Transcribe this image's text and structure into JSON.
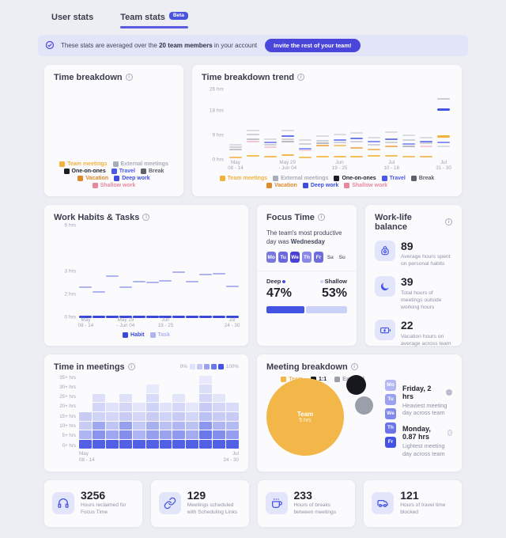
{
  "colors": {
    "accent": "#4353e3",
    "accent_light": "#ccd1f7",
    "amber": "#f2b33e",
    "page_bg": "#edeef4",
    "card_bg": "#fbfbfd"
  },
  "tabs": {
    "user_label": "User stats",
    "team_label": "Team stats",
    "beta": "Beta"
  },
  "banner": {
    "text_prefix": "These stats are averaged over the ",
    "text_bold": "20 team members",
    "text_suffix": " in your account",
    "button": "Invite the rest of your team!"
  },
  "cards": {
    "time_breakdown": {
      "title": "Time breakdown",
      "legend": [
        {
          "label": "Team meetings",
          "color": "#f2b33e"
        },
        {
          "label": "External meetings",
          "color": "#a9adb9"
        },
        {
          "label": "One-on-ones",
          "color": "#1c1d24",
          "text": "#23242d",
          "bold": true
        },
        {
          "label": "Travel",
          "color": "#4a5ae8",
          "bold": true
        },
        {
          "label": "Break",
          "color": "#5c616c"
        },
        {
          "label": "Vacation",
          "color": "#e0892a"
        },
        {
          "label": "Deep work",
          "color": "#3c4be0",
          "bold": true
        },
        {
          "label": "Shallow work",
          "color": "#e8889f"
        }
      ]
    },
    "trend": {
      "title": "Time breakdown trend",
      "y_max": 27.5,
      "y_ticks": [
        {
          "label": "26 hrs",
          "v": 26
        },
        {
          "label": "18 hrs",
          "v": 18
        },
        {
          "label": "9 hrs",
          "v": 9
        },
        {
          "label": "0 hrs",
          "v": 0
        }
      ],
      "x_ticks": [
        {
          "w": 0,
          "t": "May",
          "b": "08 - 14"
        },
        {
          "w": 3,
          "t": "May 29",
          "b": "- Jun 04"
        },
        {
          "w": 6,
          "t": "Jun",
          "b": "19 - 25"
        },
        {
          "w": 9,
          "t": "Jul",
          "b": "10 - 16"
        },
        {
          "w": 12,
          "t": "Jul",
          "b": "31 - 30"
        }
      ],
      "weeks": 13,
      "series_colors": {
        "team": "#f2b33e",
        "ext": "#b9bdcb",
        "one": "#23242d",
        "travel": "#5565ec",
        "brk": "#9ba0ae",
        "vac": "#e8992e",
        "deep": "#4353e3",
        "shallow": "#eb9db1"
      },
      "marks": [
        {
          "w": 0,
          "v": 5.2,
          "c": "ext",
          "o": 0.5
        },
        {
          "w": 0,
          "v": 4.2,
          "c": "brk",
          "o": 0.45
        },
        {
          "w": 0,
          "v": 3.4,
          "c": "one",
          "o": 0.25
        },
        {
          "w": 0,
          "v": 0.4,
          "c": "team",
          "o": 0.8
        },
        {
          "w": 1,
          "v": 10.3,
          "c": "ext",
          "o": 0.5
        },
        {
          "w": 1,
          "v": 8.8,
          "c": "brk",
          "o": 0.45
        },
        {
          "w": 1,
          "v": 7.3,
          "c": "one",
          "o": 0.25
        },
        {
          "w": 1,
          "v": 6.4,
          "c": "shallow",
          "o": 0.55
        },
        {
          "w": 1,
          "v": 1.0,
          "c": "team",
          "o": 0.85
        },
        {
          "w": 2,
          "v": 7.2,
          "c": "ext",
          "o": 0.5
        },
        {
          "w": 2,
          "v": 6.1,
          "c": "travel",
          "o": 0.7
        },
        {
          "w": 2,
          "v": 5.1,
          "c": "brk",
          "o": 0.45
        },
        {
          "w": 2,
          "v": 4.3,
          "c": "shallow",
          "o": 0.5
        },
        {
          "w": 2,
          "v": 0.7,
          "c": "team",
          "o": 0.85
        },
        {
          "w": 3,
          "v": 10.4,
          "c": "ext",
          "o": 0.5
        },
        {
          "w": 3,
          "v": 8.2,
          "c": "deep",
          "o": 0.8
        },
        {
          "w": 3,
          "v": 7.1,
          "c": "brk",
          "o": 0.45
        },
        {
          "w": 3,
          "v": 6.2,
          "c": "one",
          "o": 0.3
        },
        {
          "w": 3,
          "v": 1.2,
          "c": "team",
          "o": 0.9
        },
        {
          "w": 4,
          "v": 6.9,
          "c": "ext",
          "o": 0.5
        },
        {
          "w": 4,
          "v": 5.5,
          "c": "brk",
          "o": 0.45
        },
        {
          "w": 4,
          "v": 3.8,
          "c": "travel",
          "o": 0.65
        },
        {
          "w": 4,
          "v": 3.0,
          "c": "shallow",
          "o": 0.45
        },
        {
          "w": 4,
          "v": 0.4,
          "c": "team",
          "o": 0.8
        },
        {
          "w": 5,
          "v": 8.3,
          "c": "ext",
          "o": 0.5
        },
        {
          "w": 5,
          "v": 6.7,
          "c": "brk",
          "o": 0.45
        },
        {
          "w": 5,
          "v": 5.6,
          "c": "one",
          "o": 0.3
        },
        {
          "w": 5,
          "v": 4.8,
          "c": "vac",
          "o": 0.75
        },
        {
          "w": 5,
          "v": 0.8,
          "c": "team",
          "o": 0.85
        },
        {
          "w": 6,
          "v": 8.9,
          "c": "ext",
          "o": 0.5
        },
        {
          "w": 6,
          "v": 7.0,
          "c": "travel",
          "o": 0.75
        },
        {
          "w": 6,
          "v": 6.0,
          "c": "brk",
          "o": 0.45
        },
        {
          "w": 6,
          "v": 4.9,
          "c": "team",
          "o": 0.7
        },
        {
          "w": 6,
          "v": 0.6,
          "c": "team",
          "o": 0.85
        },
        {
          "w": 7,
          "v": 9.4,
          "c": "ext",
          "o": 0.5
        },
        {
          "w": 7,
          "v": 7.4,
          "c": "deep",
          "o": 0.75
        },
        {
          "w": 7,
          "v": 6.4,
          "c": "brk",
          "o": 0.45
        },
        {
          "w": 7,
          "v": 4.1,
          "c": "vac",
          "o": 0.7
        },
        {
          "w": 7,
          "v": 0.7,
          "c": "team",
          "o": 0.85
        },
        {
          "w": 8,
          "v": 7.7,
          "c": "ext",
          "o": 0.5
        },
        {
          "w": 8,
          "v": 6.2,
          "c": "travel",
          "o": 0.7
        },
        {
          "w": 8,
          "v": 5.1,
          "c": "brk",
          "o": 0.45
        },
        {
          "w": 8,
          "v": 3.3,
          "c": "vac",
          "o": 0.65
        },
        {
          "w": 8,
          "v": 0.9,
          "c": "team",
          "o": 0.85
        },
        {
          "w": 9,
          "v": 9.9,
          "c": "ext",
          "o": 0.5
        },
        {
          "w": 9,
          "v": 7.1,
          "c": "deep",
          "o": 0.75
        },
        {
          "w": 9,
          "v": 6.1,
          "c": "brk",
          "o": 0.45
        },
        {
          "w": 9,
          "v": 4.6,
          "c": "vac",
          "o": 0.7
        },
        {
          "w": 9,
          "v": 1.0,
          "c": "team",
          "o": 0.85
        },
        {
          "w": 10,
          "v": 8.5,
          "c": "ext",
          "o": 0.5
        },
        {
          "w": 10,
          "v": 6.9,
          "c": "brk",
          "o": 0.45
        },
        {
          "w": 10,
          "v": 5.3,
          "c": "travel",
          "o": 0.65
        },
        {
          "w": 10,
          "v": 4.4,
          "c": "one",
          "o": 0.3
        },
        {
          "w": 10,
          "v": 0.6,
          "c": "team",
          "o": 0.8
        },
        {
          "w": 11,
          "v": 7.9,
          "c": "ext",
          "o": 0.5
        },
        {
          "w": 11,
          "v": 6.3,
          "c": "deep",
          "o": 0.7
        },
        {
          "w": 11,
          "v": 5.7,
          "c": "brk",
          "o": 0.45
        },
        {
          "w": 11,
          "v": 4.5,
          "c": "shallow",
          "o": 0.5
        },
        {
          "w": 11,
          "v": 0.8,
          "c": "team",
          "o": 0.85
        },
        {
          "w": 12,
          "v": 22.2,
          "c": "brk",
          "o": 0.5
        },
        {
          "w": 12,
          "v": 18.0,
          "c": "deep",
          "b": true
        },
        {
          "w": 12,
          "v": 8.1,
          "c": "team",
          "b": true
        },
        {
          "w": 12,
          "v": 6.0,
          "c": "travel",
          "o": 0.7
        },
        {
          "w": 12,
          "v": 4.6,
          "c": "ext",
          "o": 0.5
        }
      ],
      "legend": [
        {
          "label": "Team meetings",
          "color": "#f2b33e"
        },
        {
          "label": "External meetings",
          "color": "#a9adb9"
        },
        {
          "label": "One-on-ones",
          "color": "#1c1d24",
          "text": "#23242d",
          "bold": true
        },
        {
          "label": "Travel",
          "color": "#4a5ae8",
          "bold": true
        },
        {
          "label": "Break",
          "color": "#5c616c"
        },
        {
          "label": "Vacation",
          "color": "#e0892a"
        },
        {
          "label": "Deep work",
          "color": "#3c4be0",
          "bold": true
        },
        {
          "label": "Shallow work",
          "color": "#e8889f"
        }
      ]
    },
    "habits": {
      "title": "Work Habits & Tasks",
      "y_ticks": [
        {
          "label": "6 hrs",
          "p": 100
        },
        {
          "label": "3 hrs",
          "p": 50
        },
        {
          "label": "2 hrs",
          "p": 25
        },
        {
          "label": "0 hrs",
          "p": 0
        }
      ],
      "x_ticks": [
        {
          "w": 0,
          "t": "May",
          "b": "08 - 14"
        },
        {
          "w": 3,
          "t": "May 29",
          "b": "- Jun 04"
        },
        {
          "w": 6,
          "t": "Jun",
          "b": "19 - 25"
        },
        {
          "w": 11,
          "t": "Jul",
          "b": "24 - 30"
        }
      ],
      "weeks": 12,
      "task_values": [
        2.25,
        2.05,
        2.75,
        2.25,
        2.5,
        2.45,
        2.55,
        2.9,
        2.5,
        2.8,
        2.85,
        2.3
      ],
      "habit_values": [
        0.08,
        0.08,
        0.08,
        0.08,
        0.08,
        0.08,
        0.08,
        0.08,
        0.08,
        0.08,
        0.08,
        0.08
      ],
      "task_color": "#aeb4f0",
      "habit_color": "#3a49d8",
      "legend": [
        {
          "label": "Habit",
          "color": "#3a49d8",
          "bold": true
        },
        {
          "label": "Task",
          "color": "#aeb4f0"
        }
      ]
    },
    "focus": {
      "title": "Focus Time",
      "sentence_prefix": "The team's most productive day was ",
      "sentence_bold": "Wednesday",
      "days": [
        {
          "label": "Mo",
          "bg": "#7a78e0"
        },
        {
          "label": "Tu",
          "bg": "#6b68dd"
        },
        {
          "label": "We",
          "bg": "#4b40d6"
        },
        {
          "label": "Th",
          "bg": "#8a88e5"
        },
        {
          "label": "Fr",
          "bg": "#6f6cde"
        },
        {
          "label": "Sa"
        },
        {
          "label": "Su"
        }
      ],
      "deep_label": "Deep",
      "deep_pct": "47%",
      "shallow_label": "Shallow",
      "shallow_pct": "53%",
      "bar": {
        "deep": 47,
        "shallow": 53
      }
    },
    "balance": {
      "title": "Work-life balance",
      "items": [
        {
          "icon": "weight-icon",
          "value": "89",
          "label": "Average hours spent on personal habits"
        },
        {
          "icon": "moon-icon",
          "value": "39",
          "label": "Total hours of meetings outside working hours"
        },
        {
          "icon": "battery-charging-icon",
          "value": "22",
          "label": "Vacation hours on average across team"
        }
      ]
    },
    "meetings": {
      "title": "Time in meetings",
      "legend_min": "0%",
      "legend_max": "100%",
      "legend_steps": [
        "#dfe3f9",
        "#c3c9f4",
        "#9aa3ee",
        "#6b77e8",
        "#4353e3"
      ],
      "y_labels": [
        "35+ hrs",
        "30+ hrs",
        "25+ hrs",
        "20+ hrs",
        "15+ hrs",
        "10+ hrs",
        "5+ hrs",
        "0+ hrs"
      ],
      "x_left_1": "May",
      "x_left_2": "08 - 14",
      "x_right_1": "Jul",
      "x_right_2": "24 - 30",
      "cell_color_rgb": "67,83,227",
      "cols": [
        [
          0.92,
          0.42,
          0.28,
          0.28,
          0,
          0,
          0,
          0
        ],
        [
          0.92,
          0.62,
          0.5,
          0.24,
          0.22,
          0.16,
          0,
          0
        ],
        [
          0.92,
          0.5,
          0.32,
          0.22,
          0.14,
          0,
          0,
          0
        ],
        [
          0.92,
          0.66,
          0.55,
          0.28,
          0.22,
          0.15,
          0,
          0
        ],
        [
          0.92,
          0.42,
          0.3,
          0.22,
          0.13,
          0,
          0,
          0
        ],
        [
          0.92,
          0.55,
          0.45,
          0.28,
          0.24,
          0.18,
          0.1,
          0
        ],
        [
          0.92,
          0.52,
          0.34,
          0.24,
          0.14,
          0,
          0,
          0
        ],
        [
          0.92,
          0.58,
          0.4,
          0.28,
          0.2,
          0.13,
          0,
          0
        ],
        [
          0.92,
          0.48,
          0.34,
          0.22,
          0.12,
          0,
          0,
          0
        ],
        [
          0.92,
          0.78,
          0.6,
          0.34,
          0.28,
          0.22,
          0.16,
          0.1
        ],
        [
          0.92,
          0.66,
          0.42,
          0.28,
          0.22,
          0.13,
          0,
          0
        ],
        [
          0.92,
          0.55,
          0.38,
          0.28,
          0.18,
          0,
          0,
          0
        ]
      ]
    },
    "breakdown": {
      "title": "Meeting breakdown",
      "bubble_label": "Team",
      "bubble_value": "5 hrs",
      "legend": [
        {
          "label": "Team",
          "color": "#f2b748"
        },
        {
          "label": "1:1",
          "color": "#17181d",
          "text": "#23242d",
          "bold": true
        },
        {
          "label": "External",
          "color": "#9aa0a9"
        }
      ],
      "days": [
        {
          "label": "Mo",
          "bg": "#b3b8f3"
        },
        {
          "label": "Tu",
          "bg": "#9aa1ef"
        },
        {
          "label": "We",
          "bg": "#8189eb"
        },
        {
          "label": "Th",
          "bg": "#6a73e7"
        },
        {
          "label": "Fr",
          "bg": "#4353e3"
        }
      ],
      "stats": [
        {
          "title": "Friday, 2 hrs",
          "desc": "Heaviest meeting day across team"
        },
        {
          "title": "Monday, 0.87 hrs",
          "desc": "Lightest meeting day across team"
        }
      ]
    }
  },
  "stats_row": [
    {
      "icon": "headphones-icon",
      "value": "3256",
      "label": "Hours reclaimed for Focus Time"
    },
    {
      "icon": "link-icon",
      "value": "129",
      "label": "Meetings scheduled with Scheduling Links"
    },
    {
      "icon": "coffee-icon",
      "value": "233",
      "label": "Hours of breaks between meetings"
    },
    {
      "icon": "car-icon",
      "value": "121",
      "label": "Hours of travel time blocked"
    }
  ]
}
